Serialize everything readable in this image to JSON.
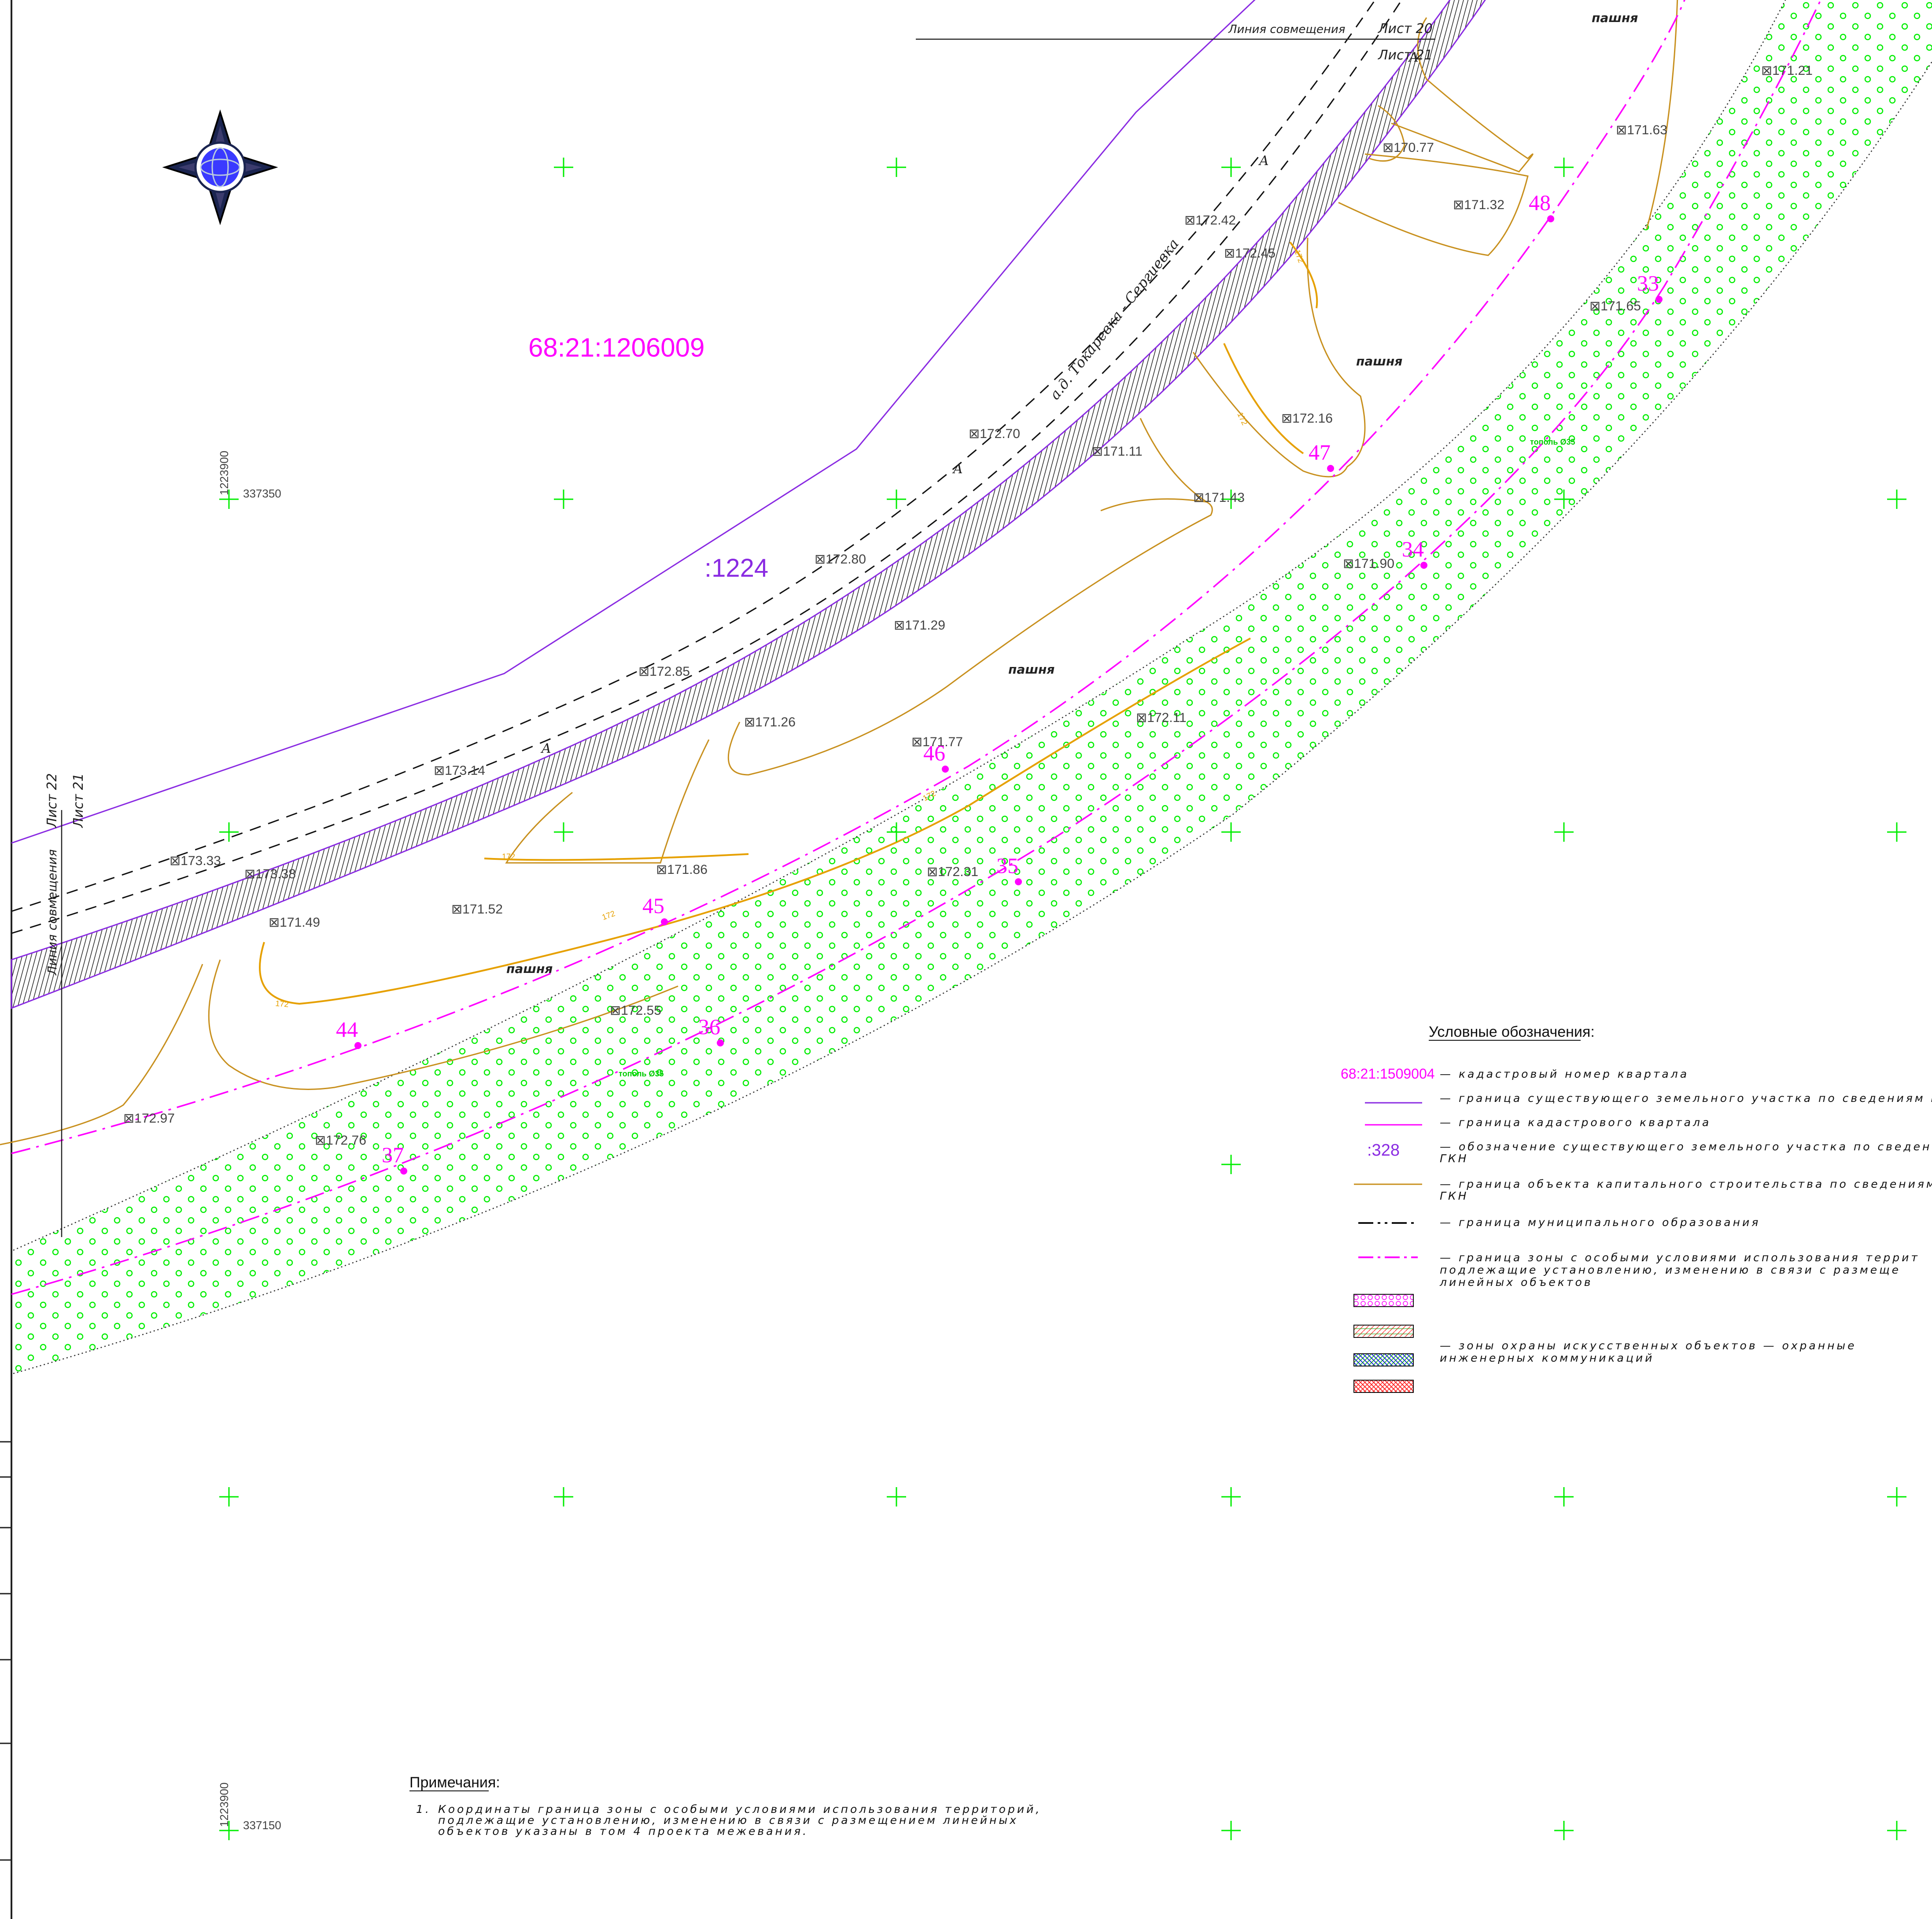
{
  "colors": {
    "cadastral": "#ff00ff",
    "parcel": "#8a2be2",
    "contour": "#e6a000",
    "capital_object": "#c8901e",
    "trees": "#00ee00",
    "grid_cross": "#00ee00",
    "elevation_text": "#444444",
    "boundary": "#111111"
  },
  "quarter_label": "68:21:1206009",
  "parcel_label": ":1224",
  "road_label": "а.д. Токаревка - Сергиевка",
  "road_marker": "A",
  "field_label": "пашня",
  "tree_label": "тополь Ø35",
  "match_lines": {
    "top_label": "Линия совмещения",
    "top_sheet_upper": "Лист 20",
    "top_sheet_lower": "Лист 21",
    "left_label": "Линия совмещения",
    "left_sheet_a": "Лист 22",
    "left_sheet_b": "Лист 21"
  },
  "coordinates": {
    "upper_vertical": "1223900",
    "upper_horizontal": "337350",
    "lower_vertical": "1223900",
    "lower_horizontal": "337150"
  },
  "contour_value": "172",
  "points": [
    {
      "label": "33"
    },
    {
      "label": "34"
    },
    {
      "label": "35"
    },
    {
      "label": "36"
    },
    {
      "label": "37"
    },
    {
      "label": "44"
    },
    {
      "label": "45"
    },
    {
      "label": "46"
    },
    {
      "label": "47"
    },
    {
      "label": "48"
    }
  ],
  "elevations": [
    "171.21",
    "171.63",
    "170.77",
    "171.32",
    "172.42",
    "172.45",
    "171.65",
    "172.16",
    "172.70",
    "171.11",
    "171.43",
    "172.80",
    "171.90",
    "171.29",
    "172.85",
    "171.26",
    "171.77",
    "172.11",
    "173.14",
    "171.52",
    "171.86",
    "173.33",
    "173.38",
    "172.31",
    "171.49",
    "172.55",
    "172.97",
    "172.76"
  ],
  "legend": {
    "title": "Условные обозначения:",
    "items": [
      {
        "symbol_text": "68:21:1509004",
        "text": "— кадастровый номер квартала"
      },
      {
        "text": "— граница существующего земельного участка по сведениям ГКН"
      },
      {
        "text": "— граница кадастрового квартала"
      },
      {
        "symbol_text": ":328",
        "text": "— обозначение существующего земельного участка по сведениям",
        "text2": "ГКН"
      },
      {
        "text": "— граница объекта капитального строительства по сведениям",
        "text2": "ГКН"
      },
      {
        "text": "— граница муниципального образования"
      },
      {
        "text": "— граница зоны с особыми условиями использования террит",
        "text2": "подлежащие установлению, изменению в связи с размеще",
        "text3": "линейных объектов"
      },
      {
        "text": "— зоны охраны искусственных объектов — охранные",
        "text2": "инженерных коммуникаций"
      }
    ]
  },
  "notes": {
    "title": "Примечания:",
    "number": "1.",
    "line1": "Координаты граница зоны с особыми условиями использования территорий,",
    "line2": "подлежащие установлению, изменению в связи с размещением линейных",
    "line3": "объектов указаны в том 4 проекта межевания."
  }
}
